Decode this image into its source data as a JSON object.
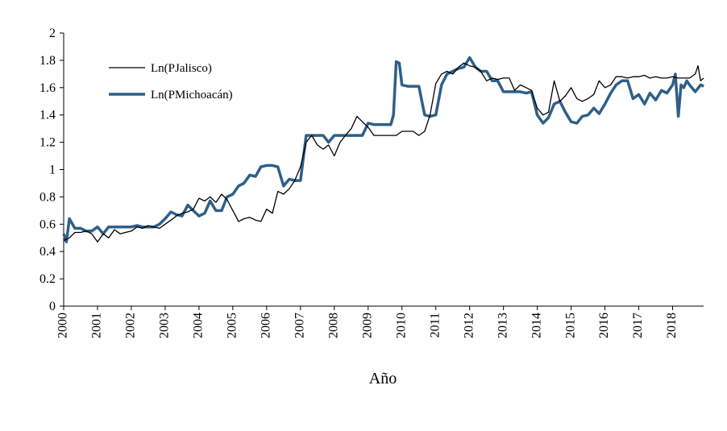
{
  "chart_data": {
    "type": "line",
    "title": "",
    "xlabel": "Año",
    "ylabel": "",
    "xlim": [
      2000,
      2018.917
    ],
    "ylim": [
      0,
      2
    ],
    "grid": false,
    "legend_position": "top-left",
    "x_ticks": [
      "2000",
      "2001",
      "2002",
      "2003",
      "2004",
      "2005",
      "2006",
      "2007",
      "2008",
      "2009",
      "2010",
      "2011",
      "2012",
      "2013",
      "2014",
      "2015",
      "2016",
      "2017",
      "2018"
    ],
    "y_ticks": [
      "0",
      "0.2",
      "0.4",
      "0.6",
      "0.8",
      "1",
      "1.2",
      "1.4",
      "1.6",
      "1.8",
      "2"
    ],
    "x_tick_values": [
      2000,
      2001,
      2002,
      2003,
      2004,
      2005,
      2006,
      2007,
      2008,
      2009,
      2010,
      2011,
      2012,
      2013,
      2014,
      2015,
      2016,
      2017,
      2018
    ],
    "y_tick_values": [
      0,
      0.2,
      0.4,
      0.6,
      0.8,
      1,
      1.2,
      1.4,
      1.6,
      1.8,
      2
    ],
    "series": [
      {
        "name": "Ln(PJalisco)",
        "color": "#000000",
        "points": [
          [
            2000.0,
            0.48
          ],
          [
            2000.17,
            0.5
          ],
          [
            2000.33,
            0.54
          ],
          [
            2000.5,
            0.54
          ],
          [
            2000.67,
            0.55
          ],
          [
            2000.83,
            0.53
          ],
          [
            2001.0,
            0.47
          ],
          [
            2001.17,
            0.53
          ],
          [
            2001.33,
            0.5
          ],
          [
            2001.5,
            0.56
          ],
          [
            2001.67,
            0.53
          ],
          [
            2001.83,
            0.54
          ],
          [
            2002.0,
            0.55
          ],
          [
            2002.17,
            0.58
          ],
          [
            2002.33,
            0.57
          ],
          [
            2002.5,
            0.59
          ],
          [
            2002.67,
            0.58
          ],
          [
            2002.83,
            0.57
          ],
          [
            2003.0,
            0.6
          ],
          [
            2003.17,
            0.63
          ],
          [
            2003.33,
            0.66
          ],
          [
            2003.5,
            0.68
          ],
          [
            2003.67,
            0.69
          ],
          [
            2003.83,
            0.71
          ],
          [
            2004.0,
            0.79
          ],
          [
            2004.17,
            0.77
          ],
          [
            2004.33,
            0.8
          ],
          [
            2004.5,
            0.76
          ],
          [
            2004.67,
            0.82
          ],
          [
            2004.83,
            0.78
          ],
          [
            2005.0,
            0.7
          ],
          [
            2005.17,
            0.62
          ],
          [
            2005.33,
            0.64
          ],
          [
            2005.5,
            0.65
          ],
          [
            2005.67,
            0.63
          ],
          [
            2005.83,
            0.62
          ],
          [
            2006.0,
            0.71
          ],
          [
            2006.17,
            0.68
          ],
          [
            2006.33,
            0.84
          ],
          [
            2006.5,
            0.82
          ],
          [
            2006.67,
            0.86
          ],
          [
            2006.83,
            0.92
          ],
          [
            2007.0,
            1.02
          ],
          [
            2007.17,
            1.2
          ],
          [
            2007.33,
            1.25
          ],
          [
            2007.5,
            1.18
          ],
          [
            2007.67,
            1.15
          ],
          [
            2007.83,
            1.18
          ],
          [
            2008.0,
            1.1
          ],
          [
            2008.17,
            1.2
          ],
          [
            2008.33,
            1.25
          ],
          [
            2008.5,
            1.3
          ],
          [
            2008.67,
            1.39
          ],
          [
            2008.83,
            1.35
          ],
          [
            2009.0,
            1.31
          ],
          [
            2009.17,
            1.25
          ],
          [
            2009.33,
            1.25
          ],
          [
            2009.5,
            1.25
          ],
          [
            2009.67,
            1.25
          ],
          [
            2009.83,
            1.25
          ],
          [
            2010.0,
            1.28
          ],
          [
            2010.17,
            1.28
          ],
          [
            2010.33,
            1.28
          ],
          [
            2010.5,
            1.25
          ],
          [
            2010.67,
            1.28
          ],
          [
            2010.83,
            1.4
          ],
          [
            2011.0,
            1.63
          ],
          [
            2011.17,
            1.7
          ],
          [
            2011.33,
            1.72
          ],
          [
            2011.5,
            1.7
          ],
          [
            2011.67,
            1.75
          ],
          [
            2011.83,
            1.78
          ],
          [
            2012.0,
            1.76
          ],
          [
            2012.17,
            1.75
          ],
          [
            2012.33,
            1.72
          ],
          [
            2012.5,
            1.65
          ],
          [
            2012.67,
            1.67
          ],
          [
            2012.83,
            1.66
          ],
          [
            2013.0,
            1.67
          ],
          [
            2013.17,
            1.67
          ],
          [
            2013.33,
            1.58
          ],
          [
            2013.5,
            1.62
          ],
          [
            2013.67,
            1.6
          ],
          [
            2013.83,
            1.58
          ],
          [
            2014.0,
            1.45
          ],
          [
            2014.17,
            1.4
          ],
          [
            2014.33,
            1.42
          ],
          [
            2014.5,
            1.65
          ],
          [
            2014.67,
            1.5
          ],
          [
            2014.83,
            1.54
          ],
          [
            2015.0,
            1.6
          ],
          [
            2015.17,
            1.52
          ],
          [
            2015.33,
            1.5
          ],
          [
            2015.5,
            1.52
          ],
          [
            2015.67,
            1.55
          ],
          [
            2015.83,
            1.65
          ],
          [
            2016.0,
            1.6
          ],
          [
            2016.17,
            1.62
          ],
          [
            2016.33,
            1.68
          ],
          [
            2016.5,
            1.68
          ],
          [
            2016.67,
            1.67
          ],
          [
            2016.83,
            1.68
          ],
          [
            2017.0,
            1.68
          ],
          [
            2017.17,
            1.69
          ],
          [
            2017.33,
            1.67
          ],
          [
            2017.5,
            1.68
          ],
          [
            2017.67,
            1.67
          ],
          [
            2017.83,
            1.67
          ],
          [
            2018.0,
            1.68
          ],
          [
            2018.17,
            1.67
          ],
          [
            2018.33,
            1.67
          ],
          [
            2018.5,
            1.67
          ],
          [
            2018.67,
            1.7
          ],
          [
            2018.75,
            1.76
          ],
          [
            2018.83,
            1.65
          ],
          [
            2018.92,
            1.67
          ]
        ]
      },
      {
        "name": "Ln(PMichoacán)",
        "color": "#2e5f8a",
        "points": [
          [
            2000.0,
            0.53
          ],
          [
            2000.08,
            0.47
          ],
          [
            2000.17,
            0.64
          ],
          [
            2000.33,
            0.57
          ],
          [
            2000.5,
            0.57
          ],
          [
            2000.67,
            0.55
          ],
          [
            2000.83,
            0.55
          ],
          [
            2001.0,
            0.58
          ],
          [
            2001.17,
            0.53
          ],
          [
            2001.33,
            0.58
          ],
          [
            2001.5,
            0.58
          ],
          [
            2001.67,
            0.58
          ],
          [
            2001.83,
            0.58
          ],
          [
            2002.0,
            0.58
          ],
          [
            2002.17,
            0.59
          ],
          [
            2002.33,
            0.58
          ],
          [
            2002.5,
            0.58
          ],
          [
            2002.67,
            0.58
          ],
          [
            2002.83,
            0.6
          ],
          [
            2003.0,
            0.64
          ],
          [
            2003.17,
            0.69
          ],
          [
            2003.33,
            0.67
          ],
          [
            2003.5,
            0.66
          ],
          [
            2003.67,
            0.74
          ],
          [
            2003.83,
            0.7
          ],
          [
            2004.0,
            0.66
          ],
          [
            2004.17,
            0.68
          ],
          [
            2004.33,
            0.77
          ],
          [
            2004.5,
            0.7
          ],
          [
            2004.67,
            0.7
          ],
          [
            2004.83,
            0.8
          ],
          [
            2005.0,
            0.82
          ],
          [
            2005.17,
            0.88
          ],
          [
            2005.33,
            0.9
          ],
          [
            2005.5,
            0.96
          ],
          [
            2005.67,
            0.95
          ],
          [
            2005.83,
            1.02
          ],
          [
            2006.0,
            1.03
          ],
          [
            2006.17,
            1.03
          ],
          [
            2006.33,
            1.02
          ],
          [
            2006.5,
            0.88
          ],
          [
            2006.67,
            0.93
          ],
          [
            2006.83,
            0.92
          ],
          [
            2007.0,
            0.92
          ],
          [
            2007.17,
            1.25
          ],
          [
            2007.33,
            1.25
          ],
          [
            2007.5,
            1.25
          ],
          [
            2007.67,
            1.25
          ],
          [
            2007.83,
            1.2
          ],
          [
            2008.0,
            1.25
          ],
          [
            2008.17,
            1.25
          ],
          [
            2008.33,
            1.25
          ],
          [
            2008.5,
            1.25
          ],
          [
            2008.67,
            1.25
          ],
          [
            2008.83,
            1.25
          ],
          [
            2009.0,
            1.34
          ],
          [
            2009.17,
            1.33
          ],
          [
            2009.33,
            1.33
          ],
          [
            2009.5,
            1.33
          ],
          [
            2009.67,
            1.33
          ],
          [
            2009.75,
            1.4
          ],
          [
            2009.83,
            1.79
          ],
          [
            2009.92,
            1.78
          ],
          [
            2010.0,
            1.62
          ],
          [
            2010.17,
            1.61
          ],
          [
            2010.33,
            1.61
          ],
          [
            2010.5,
            1.61
          ],
          [
            2010.67,
            1.4
          ],
          [
            2010.83,
            1.39
          ],
          [
            2011.0,
            1.4
          ],
          [
            2011.17,
            1.62
          ],
          [
            2011.33,
            1.7
          ],
          [
            2011.5,
            1.72
          ],
          [
            2011.67,
            1.74
          ],
          [
            2011.83,
            1.75
          ],
          [
            2012.0,
            1.82
          ],
          [
            2012.17,
            1.75
          ],
          [
            2012.33,
            1.72
          ],
          [
            2012.5,
            1.72
          ],
          [
            2012.67,
            1.65
          ],
          [
            2012.83,
            1.65
          ],
          [
            2013.0,
            1.57
          ],
          [
            2013.17,
            1.57
          ],
          [
            2013.33,
            1.57
          ],
          [
            2013.5,
            1.57
          ],
          [
            2013.67,
            1.56
          ],
          [
            2013.83,
            1.57
          ],
          [
            2014.0,
            1.4
          ],
          [
            2014.17,
            1.34
          ],
          [
            2014.33,
            1.38
          ],
          [
            2014.5,
            1.48
          ],
          [
            2014.67,
            1.5
          ],
          [
            2014.83,
            1.42
          ],
          [
            2015.0,
            1.35
          ],
          [
            2015.17,
            1.34
          ],
          [
            2015.33,
            1.39
          ],
          [
            2015.5,
            1.4
          ],
          [
            2015.67,
            1.45
          ],
          [
            2015.83,
            1.41
          ],
          [
            2016.0,
            1.48
          ],
          [
            2016.17,
            1.56
          ],
          [
            2016.33,
            1.62
          ],
          [
            2016.5,
            1.65
          ],
          [
            2016.67,
            1.65
          ],
          [
            2016.83,
            1.52
          ],
          [
            2017.0,
            1.55
          ],
          [
            2017.17,
            1.48
          ],
          [
            2017.33,
            1.56
          ],
          [
            2017.5,
            1.51
          ],
          [
            2017.67,
            1.58
          ],
          [
            2017.83,
            1.56
          ],
          [
            2018.0,
            1.62
          ],
          [
            2018.08,
            1.7
          ],
          [
            2018.17,
            1.39
          ],
          [
            2018.25,
            1.62
          ],
          [
            2018.33,
            1.6
          ],
          [
            2018.42,
            1.65
          ],
          [
            2018.5,
            1.62
          ],
          [
            2018.67,
            1.57
          ],
          [
            2018.83,
            1.62
          ],
          [
            2018.92,
            1.61
          ]
        ]
      }
    ]
  }
}
